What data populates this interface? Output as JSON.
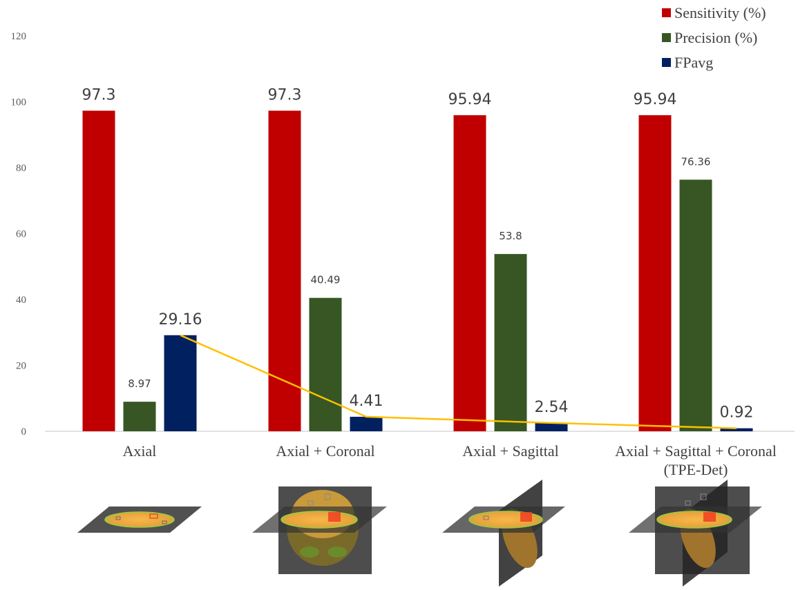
{
  "chart_data": {
    "type": "bar",
    "categories": [
      "Axial",
      "Axial + Coronal",
      "Axial + Sagittal",
      "Axial + Sagittal + Coronal (TPE-Det)"
    ],
    "category_lines": [
      [
        "Axial"
      ],
      [
        "Axial + Coronal"
      ],
      [
        "Axial + Sagittal"
      ],
      [
        "Axial + Sagittal + Coronal",
        "(TPE-Det)"
      ]
    ],
    "series": [
      {
        "name": "Sensitivity (%)",
        "color": "#c00000",
        "values": [
          97.3,
          97.3,
          95.94,
          95.94
        ],
        "labels": [
          "97.3",
          "97.3",
          "95.94",
          "95.94"
        ]
      },
      {
        "name": "Precision (%)",
        "color": "#375623",
        "values": [
          8.97,
          40.49,
          53.8,
          76.36
        ],
        "labels": [
          "8.97",
          "40.49",
          "53.8",
          "76.36"
        ]
      },
      {
        "name": "FPavg",
        "color": "#002060",
        "values": [
          29.16,
          4.41,
          2.54,
          0.92
        ],
        "labels": [
          "29.16",
          "4.41",
          "2.54",
          "0.92"
        ]
      }
    ],
    "trend_line": {
      "series": "FPavg",
      "color": "#ffc000"
    },
    "yticks": [
      0,
      20,
      40,
      60,
      80,
      100,
      120
    ],
    "ylim": [
      0,
      120
    ],
    "legend_position": "top-right",
    "title": "",
    "xlabel": "",
    "ylabel": "",
    "illustrations": [
      {
        "name": "axial-plane-illustration",
        "planes": [
          "axial"
        ]
      },
      {
        "name": "axial-coronal-illustration",
        "planes": [
          "axial",
          "coronal"
        ]
      },
      {
        "name": "axial-sagittal-illustration",
        "planes": [
          "axial",
          "sagittal"
        ]
      },
      {
        "name": "axial-sagittal-coronal-illustration",
        "planes": [
          "axial",
          "sagittal",
          "coronal"
        ]
      }
    ]
  }
}
